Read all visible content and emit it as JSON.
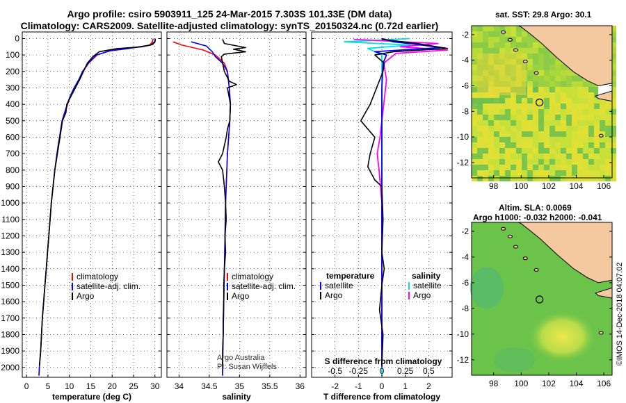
{
  "titles": {
    "line1": "Argo profile: csiro 5903911_125 24-Mar-2015 7.303S 101.33E (DM data)",
    "line2": "Climatology: CARS2009. Satellite-adjusted climatology: synTS_20150324.nc (0.72d earlier)"
  },
  "depth_axis": {
    "ticks": [
      0,
      100,
      200,
      300,
      400,
      500,
      600,
      700,
      800,
      900,
      1000,
      1100,
      1200,
      1300,
      1400,
      1500,
      1600,
      1700,
      1800,
      1900,
      2000
    ],
    "range": [
      -40,
      2060
    ]
  },
  "chart_data": [
    {
      "type": "line",
      "panel": "temperature",
      "xlabel": "temperature (deg C)",
      "xlim": [
        -1,
        31.5
      ],
      "xticks": [
        0,
        5,
        10,
        15,
        20,
        25,
        30
      ],
      "xtick_labels": [
        "0",
        "5",
        "10",
        "15",
        "20",
        "25",
        "30"
      ],
      "legend": [
        "climatology",
        "satellite-adj. clim.",
        "Argo"
      ],
      "series": [
        {
          "name": "climatology",
          "color": "#ff0000",
          "points": [
            [
              29.6,
              0
            ],
            [
              29.4,
              20
            ],
            [
              28.8,
              40
            ],
            [
              25,
              55
            ],
            [
              20,
              70
            ],
            [
              16.5,
              100
            ],
            [
              14.5,
              150
            ],
            [
              13.2,
              200
            ],
            [
              12.3,
              250
            ],
            [
              11.2,
              300
            ],
            [
              10.3,
              350
            ],
            [
              9.6,
              400
            ],
            [
              9.0,
              450
            ],
            [
              8.4,
              500
            ],
            [
              7.8,
              600
            ],
            [
              7.2,
              700
            ],
            [
              6.6,
              800
            ],
            [
              6.2,
              900
            ],
            [
              5.8,
              1000
            ],
            [
              5.5,
              1100
            ],
            [
              5.2,
              1200
            ],
            [
              4.9,
              1300
            ],
            [
              4.6,
              1400
            ],
            [
              4.3,
              1500
            ],
            [
              4.0,
              1600
            ],
            [
              3.7,
              1700
            ],
            [
              3.5,
              1800
            ],
            [
              3.3,
              1900
            ],
            [
              3.0,
              2000
            ],
            [
              2.9,
              2050
            ]
          ]
        },
        {
          "name": "satellite-adj. clim.",
          "color": "#0000ff",
          "points": [
            [
              30.1,
              0
            ],
            [
              29.9,
              20
            ],
            [
              29.0,
              40
            ],
            [
              24,
              60
            ],
            [
              19.5,
              75
            ],
            [
              16.3,
              100
            ],
            [
              14.4,
              150
            ],
            [
              13.1,
              200
            ],
            [
              12.2,
              250
            ],
            [
              11.1,
              300
            ],
            [
              10.2,
              350
            ],
            [
              9.5,
              400
            ],
            [
              8.9,
              450
            ],
            [
              8.3,
              500
            ],
            [
              7.7,
              600
            ],
            [
              7.1,
              700
            ],
            [
              6.6,
              800
            ],
            [
              6.2,
              900
            ],
            [
              5.8,
              1000
            ],
            [
              5.5,
              1100
            ],
            [
              5.2,
              1200
            ],
            [
              4.9,
              1300
            ],
            [
              4.6,
              1400
            ],
            [
              4.3,
              1500
            ],
            [
              4.0,
              1600
            ],
            [
              3.7,
              1700
            ],
            [
              3.5,
              1800
            ],
            [
              3.3,
              1900
            ],
            [
              3.0,
              2000
            ],
            [
              2.9,
              2050
            ]
          ]
        },
        {
          "name": "Argo",
          "color": "#000000",
          "points": [
            [
              30.1,
              5
            ],
            [
              30.0,
              20
            ],
            [
              29.5,
              35
            ],
            [
              27,
              50
            ],
            [
              21,
              62
            ],
            [
              17,
              80
            ],
            [
              15.5,
              110
            ],
            [
              14.2,
              150
            ],
            [
              13.3,
              200
            ],
            [
              12.4,
              250
            ],
            [
              11.4,
              300
            ],
            [
              10.4,
              350
            ],
            [
              9.4,
              400
            ],
            [
              9.2,
              450
            ],
            [
              8.4,
              500
            ],
            [
              7.8,
              600
            ],
            [
              7.2,
              700
            ],
            [
              6.6,
              800
            ],
            [
              6.2,
              900
            ],
            [
              5.8,
              1000
            ],
            [
              5.5,
              1100
            ],
            [
              5.2,
              1200
            ],
            [
              4.9,
              1300
            ],
            [
              4.6,
              1400
            ],
            [
              4.3,
              1500
            ],
            [
              4.0,
              1600
            ],
            [
              3.7,
              1700
            ],
            [
              3.5,
              1800
            ],
            [
              3.3,
              1900
            ],
            [
              3.0,
              1990
            ]
          ]
        }
      ]
    },
    {
      "type": "line",
      "panel": "salinity",
      "xlabel": "salinity",
      "xlim": [
        33.8,
        36.1
      ],
      "xticks": [
        34,
        34.5,
        35,
        35.5,
        36
      ],
      "xtick_labels": [
        "34",
        "34.5",
        "35",
        "35.5",
        "36"
      ],
      "legend": [
        "climatology",
        "satellite-adj. clim.",
        "Argo"
      ],
      "annotations": [
        "Argo Australia",
        "PI: Susan Wijffels"
      ],
      "series": [
        {
          "name": "climatology",
          "color": "#ff0000",
          "points": [
            [
              33.9,
              20
            ],
            [
              34.05,
              40
            ],
            [
              34.4,
              70
            ],
            [
              34.6,
              100
            ],
            [
              34.75,
              150
            ],
            [
              34.8,
              200
            ],
            [
              34.83,
              300
            ],
            [
              34.85,
              400
            ],
            [
              34.84,
              500
            ],
            [
              34.82,
              600
            ],
            [
              34.8,
              700
            ],
            [
              34.79,
              800
            ],
            [
              34.78,
              900
            ],
            [
              34.77,
              1000
            ],
            [
              34.76,
              1200
            ],
            [
              34.75,
              1400
            ],
            [
              34.74,
              1600
            ],
            [
              34.73,
              1800
            ],
            [
              34.72,
              2000
            ],
            [
              34.72,
              2050
            ]
          ]
        },
        {
          "name": "satellite-adj. clim.",
          "color": "#0000ff",
          "points": [
            [
              34.2,
              20
            ],
            [
              34.45,
              45
            ],
            [
              34.55,
              80
            ],
            [
              34.6,
              110
            ],
            [
              34.72,
              150
            ],
            [
              34.8,
              200
            ],
            [
              34.83,
              300
            ],
            [
              34.85,
              400
            ],
            [
              34.84,
              500
            ],
            [
              34.82,
              600
            ],
            [
              34.8,
              700
            ],
            [
              34.79,
              800
            ],
            [
              34.78,
              900
            ],
            [
              34.77,
              1000
            ],
            [
              34.76,
              1200
            ],
            [
              34.75,
              1400
            ],
            [
              34.74,
              1600
            ],
            [
              34.73,
              1800
            ],
            [
              34.72,
              2000
            ],
            [
              34.72,
              2050
            ]
          ]
        },
        {
          "name": "Argo",
          "color": "#000000",
          "points": [
            [
              34.72,
              5
            ],
            [
              34.75,
              30
            ],
            [
              35.1,
              55
            ],
            [
              34.9,
              65
            ],
            [
              35.1,
              80
            ],
            [
              34.75,
              95
            ],
            [
              34.7,
              110
            ],
            [
              34.72,
              150
            ],
            [
              34.75,
              200
            ],
            [
              34.83,
              260
            ],
            [
              34.95,
              280
            ],
            [
              34.8,
              300
            ],
            [
              34.85,
              400
            ],
            [
              34.84,
              500
            ],
            [
              34.8,
              550
            ],
            [
              34.78,
              600
            ],
            [
              34.75,
              650
            ],
            [
              34.72,
              700
            ],
            [
              34.65,
              750
            ],
            [
              34.72,
              800
            ],
            [
              34.75,
              900
            ],
            [
              34.77,
              1000
            ],
            [
              34.78,
              1100
            ],
            [
              34.76,
              1200
            ],
            [
              34.77,
              1300
            ],
            [
              34.75,
              1400
            ],
            [
              34.74,
              1500
            ],
            [
              34.74,
              1600
            ],
            [
              34.73,
              1700
            ],
            [
              34.73,
              1800
            ],
            [
              34.72,
              1900
            ],
            [
              34.72,
              1990
            ]
          ]
        }
      ]
    },
    {
      "type": "line",
      "panel": "difference",
      "xlabel": "T difference from climatology",
      "xlabel2": "S difference from climatology",
      "xlim_T": [
        -3,
        3
      ],
      "xticks_T": [
        -2,
        -1,
        0,
        1,
        2
      ],
      "xtick_labels_T": [
        "-2",
        "-1",
        "0",
        "1",
        "2"
      ],
      "xlim_S": [
        -0.75,
        0.75
      ],
      "xticks_S": [
        -0.5,
        -0.25,
        0,
        0.25,
        0.5
      ],
      "xtick_labels_S": [
        "-0.5",
        "-0.25",
        "0",
        "0.25",
        "0.5"
      ],
      "legend_left_title": "temperature",
      "legend_right_title": "salinity",
      "legend": [
        "satellite",
        "Argo",
        "satellite",
        "Argo"
      ],
      "series": [
        {
          "name": "temperature satellite",
          "color": "#0000ff",
          "points": [
            [
              0,
              0
            ],
            [
              0.5,
              20
            ],
            [
              1.5,
              35
            ],
            [
              2.5,
              55
            ],
            [
              -0.3,
              80
            ],
            [
              0.2,
              100
            ],
            [
              0.05,
              150
            ],
            [
              0,
              300
            ],
            [
              0,
              500
            ],
            [
              0,
              1000
            ],
            [
              0,
              2000
            ]
          ]
        },
        {
          "name": "temperature Argo",
          "color": "#000000",
          "points": [
            [
              0,
              5
            ],
            [
              1.5,
              30
            ],
            [
              2.8,
              60
            ],
            [
              0.5,
              80
            ],
            [
              -0.3,
              100
            ],
            [
              0.1,
              150
            ],
            [
              0.05,
              200
            ],
            [
              -0.5,
              400
            ],
            [
              -0.9,
              500
            ],
            [
              -0.3,
              600
            ],
            [
              -0.5,
              700
            ],
            [
              -0.6,
              780
            ],
            [
              -0.3,
              860
            ],
            [
              0,
              900
            ],
            [
              0.05,
              1100
            ],
            [
              0,
              1300
            ],
            [
              0.1,
              1400
            ],
            [
              0,
              1500
            ],
            [
              -0.1,
              1650
            ],
            [
              0.05,
              1800
            ],
            [
              0,
              1990
            ]
          ]
        },
        {
          "name": "salinity satellite",
          "color": "#00e0e0",
          "points": [
            [
              0.3,
              0
            ],
            [
              -0.4,
              20
            ],
            [
              0.3,
              40
            ],
            [
              -0.15,
              60
            ],
            [
              0,
              100
            ],
            [
              0,
              200
            ],
            [
              0,
              400
            ],
            [
              0,
              700
            ],
            [
              0,
              1000
            ],
            [
              0,
              1500
            ],
            [
              0,
              2050
            ]
          ]
        },
        {
          "name": "salinity Argo",
          "color": "#ff00ff",
          "points": [
            [
              -0.3,
              5
            ],
            [
              0.6,
              30
            ],
            [
              0.2,
              50
            ],
            [
              0.7,
              70
            ],
            [
              0.15,
              90
            ],
            [
              0.02,
              150
            ],
            [
              0.05,
              250
            ],
            [
              0.02,
              400
            ],
            [
              -0.02,
              600
            ],
            [
              -0.05,
              700
            ],
            [
              -0.03,
              800
            ],
            [
              0,
              1000
            ],
            [
              0,
              1400
            ],
            [
              0,
              1800
            ],
            [
              0,
              1990
            ]
          ]
        }
      ]
    }
  ],
  "maps": {
    "sst_title": "sat. SST: 29.8 Argo: 30.1",
    "sla_title": "Altim. SLA: 0.0069",
    "h_title": "Argo h1000: -0.032 h2000: -0.041",
    "lon_ticks": [
      "98",
      "100",
      "102",
      "104",
      "106"
    ],
    "lat_ticks": [
      "-2",
      "-4",
      "-6",
      "-8",
      "-10",
      "-12"
    ],
    "credit": "©IMOS 14-Dec-2018 04:07:02",
    "colors": {
      "land": "#f5c9a0",
      "sst_base": "#9fd640",
      "sla_base": "#6cc34a",
      "sla_high": "#ece84a"
    }
  }
}
